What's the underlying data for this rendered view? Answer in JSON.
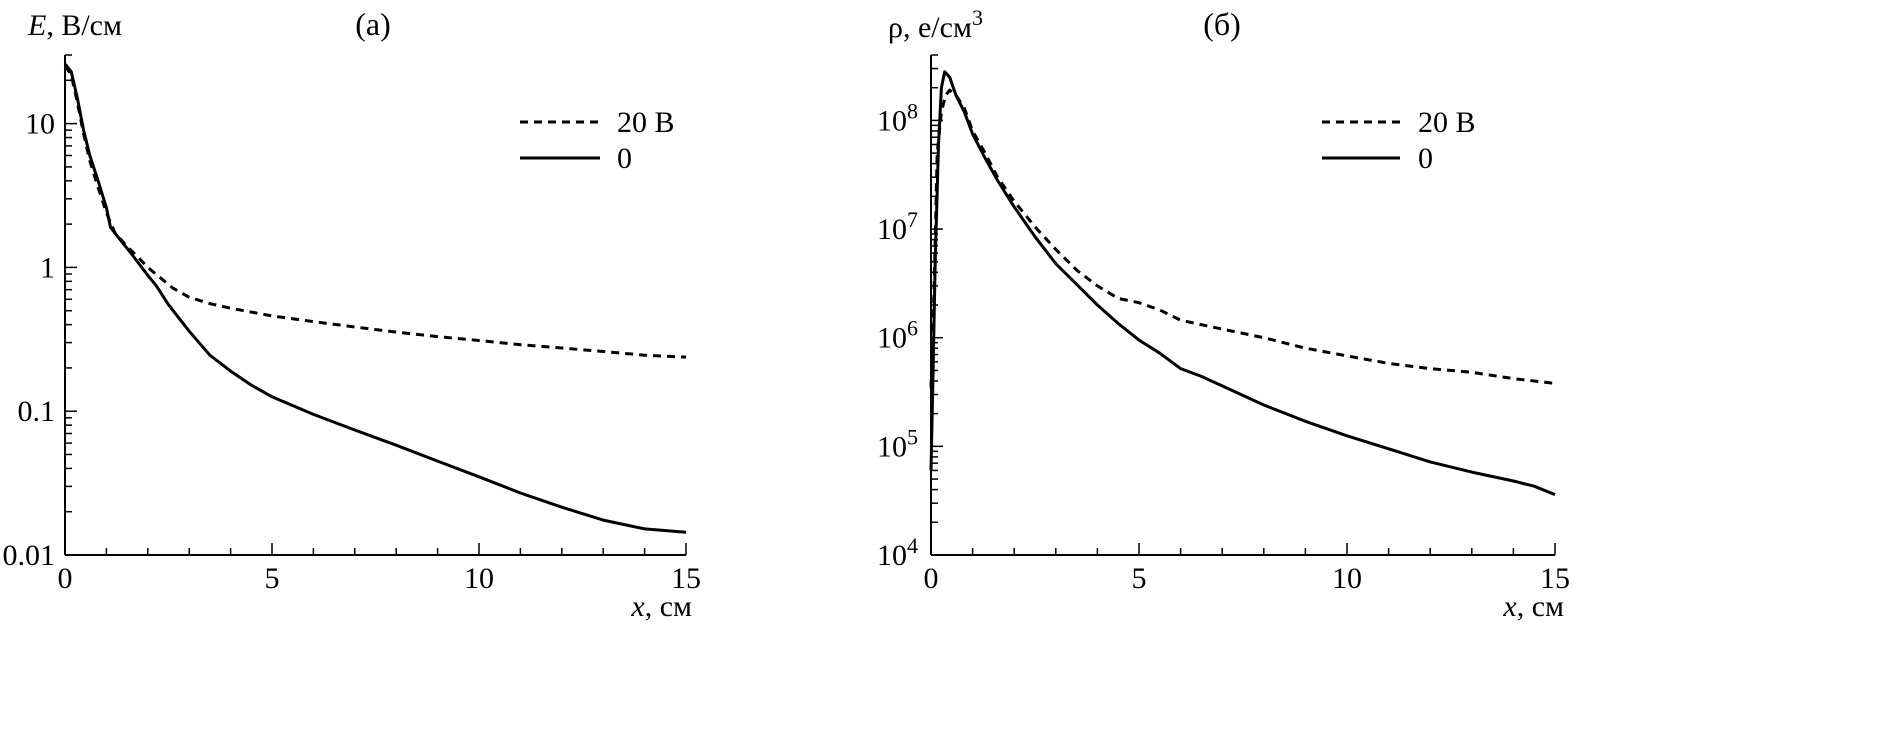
{
  "chart_data": [
    {
      "type": "line",
      "panel_label": "(а)",
      "ylabel_var": "E",
      "ylabel_unit": ", В/см",
      "xlabel_var": "x",
      "xlabel_unit": ", см",
      "xlim": [
        0,
        15
      ],
      "ylim": [
        0.01,
        30
      ],
      "yscale": "log",
      "grid": false,
      "legend_position": "top-right",
      "x_ticks": [
        0,
        5,
        10,
        15
      ],
      "x_tick_labels": [
        "0",
        "5",
        "10",
        "15"
      ],
      "y_ticks": [
        0.01,
        0.1,
        1,
        10
      ],
      "y_tick_labels": [
        "0.01",
        "0.1",
        "1",
        "10"
      ],
      "series": [
        {
          "name": "20 В",
          "style": "dashed",
          "points": [
            [
              0,
              25
            ],
            [
              0.15,
              22
            ],
            [
              0.3,
              14
            ],
            [
              0.45,
              8.5
            ],
            [
              0.6,
              5.5
            ],
            [
              0.8,
              3.6
            ],
            [
              1.0,
              2.4
            ],
            [
              1.2,
              1.75
            ],
            [
              1.5,
              1.4
            ],
            [
              1.8,
              1.15
            ],
            [
              2.0,
              1.0
            ],
            [
              2.3,
              0.85
            ],
            [
              2.6,
              0.72
            ],
            [
              3.0,
              0.62
            ],
            [
              3.5,
              0.56
            ],
            [
              4.0,
              0.52
            ],
            [
              5.0,
              0.46
            ],
            [
              6.0,
              0.42
            ],
            [
              7.0,
              0.385
            ],
            [
              8.0,
              0.355
            ],
            [
              9.0,
              0.33
            ],
            [
              10.0,
              0.31
            ],
            [
              11.0,
              0.29
            ],
            [
              12.0,
              0.275
            ],
            [
              13.0,
              0.26
            ],
            [
              14.0,
              0.245
            ],
            [
              15.0,
              0.238
            ]
          ]
        },
        {
          "name": "0",
          "style": "solid",
          "points": [
            [
              0,
              26
            ],
            [
              0.15,
              23
            ],
            [
              0.3,
              15
            ],
            [
              0.45,
              9
            ],
            [
              0.6,
              6
            ],
            [
              0.8,
              4.0
            ],
            [
              1.0,
              2.6
            ],
            [
              1.1,
              1.9
            ],
            [
              1.3,
              1.6
            ],
            [
              1.6,
              1.25
            ],
            [
              2.0,
              0.88
            ],
            [
              2.2,
              0.75
            ],
            [
              2.5,
              0.55
            ],
            [
              3.0,
              0.36
            ],
            [
              3.5,
              0.245
            ],
            [
              4.0,
              0.19
            ],
            [
              4.5,
              0.152
            ],
            [
              5.0,
              0.126
            ],
            [
              6.0,
              0.095
            ],
            [
              7.0,
              0.074
            ],
            [
              8.0,
              0.058
            ],
            [
              9.0,
              0.045
            ],
            [
              10.0,
              0.035
            ],
            [
              11.0,
              0.027
            ],
            [
              12.0,
              0.0215
            ],
            [
              13.0,
              0.0175
            ],
            [
              14.0,
              0.0152
            ],
            [
              15.0,
              0.0144
            ]
          ]
        }
      ]
    },
    {
      "type": "line",
      "panel_label": "(б)",
      "ylabel_var": "ρ",
      "ylabel_unit": ", e/см",
      "ylabel_sup": "3",
      "xlabel_var": "x",
      "xlabel_unit": ", см",
      "xlim": [
        0,
        15
      ],
      "ylim": [
        10000,
        400000000
      ],
      "yscale": "log",
      "grid": false,
      "legend_position": "top-right",
      "x_ticks": [
        0,
        5,
        10,
        15
      ],
      "x_tick_labels": [
        "0",
        "5",
        "10",
        "15"
      ],
      "y_ticks": [
        10000,
        100000,
        1000000,
        10000000,
        100000000
      ],
      "y_tick_base": "10",
      "y_tick_exponents": [
        "4",
        "5",
        "6",
        "7",
        "8"
      ],
      "series": [
        {
          "name": "20 В",
          "style": "dashed",
          "points": [
            [
              0,
              350000
            ],
            [
              0.05,
              1200000
            ],
            [
              0.1,
              8000000
            ],
            [
              0.15,
              50000000
            ],
            [
              0.25,
              120000000
            ],
            [
              0.35,
              170000000
            ],
            [
              0.45,
              190000000
            ],
            [
              0.6,
              170000000
            ],
            [
              0.8,
              130000000
            ],
            [
              1.0,
              80000000
            ],
            [
              1.3,
              50000000
            ],
            [
              1.6,
              30000000
            ],
            [
              2.0,
              18000000
            ],
            [
              2.5,
              10500000
            ],
            [
              3.0,
              6500000
            ],
            [
              3.5,
              4200000
            ],
            [
              4.0,
              3000000
            ],
            [
              4.5,
              2300000
            ],
            [
              5.0,
              2100000
            ],
            [
              5.5,
              1800000
            ],
            [
              6.0,
              1450000
            ],
            [
              7.0,
              1200000
            ],
            [
              8.0,
              1000000
            ],
            [
              9.0,
              800000
            ],
            [
              10.0,
              680000
            ],
            [
              11.0,
              580000
            ],
            [
              12.0,
              520000
            ],
            [
              13.0,
              480000
            ],
            [
              14.0,
              420000
            ],
            [
              15.0,
              380000
            ]
          ]
        },
        {
          "name": "0",
          "style": "solid",
          "points": [
            [
              0,
              60000
            ],
            [
              0.05,
              500000
            ],
            [
              0.1,
              5000000
            ],
            [
              0.18,
              60000000
            ],
            [
              0.25,
              200000000
            ],
            [
              0.33,
              280000000
            ],
            [
              0.45,
              250000000
            ],
            [
              0.6,
              170000000
            ],
            [
              0.8,
              120000000
            ],
            [
              1.0,
              75000000
            ],
            [
              1.3,
              45000000
            ],
            [
              1.6,
              28000000
            ],
            [
              2.0,
              16000000
            ],
            [
              2.5,
              8500000
            ],
            [
              3.0,
              4800000
            ],
            [
              3.5,
              3100000
            ],
            [
              4.0,
              2000000
            ],
            [
              4.5,
              1350000
            ],
            [
              5.0,
              950000
            ],
            [
              5.5,
              720000
            ],
            [
              6.0,
              520000
            ],
            [
              6.5,
              440000
            ],
            [
              7.0,
              360000
            ],
            [
              8.0,
              240000
            ],
            [
              9.0,
              170000
            ],
            [
              10.0,
              125000
            ],
            [
              11.0,
              95000
            ],
            [
              12.0,
              72000
            ],
            [
              13.0,
              58000
            ],
            [
              14.0,
              48000
            ],
            [
              14.5,
              43000
            ],
            [
              15.0,
              36000
            ]
          ]
        }
      ]
    }
  ]
}
